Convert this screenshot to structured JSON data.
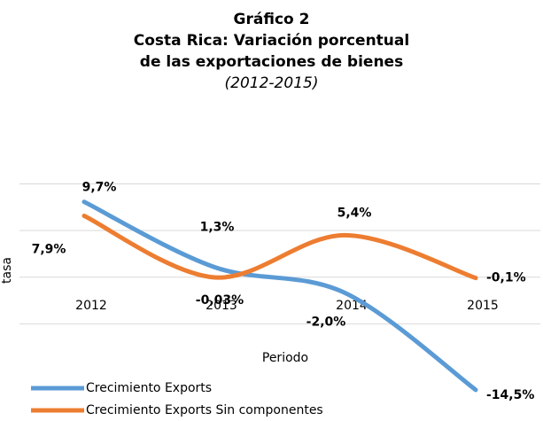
{
  "chart_data": {
    "type": "line",
    "title": "Gráfico 2",
    "subtitle": "Costa Rica: Variación porcentual de las exportaciones de bienes",
    "period": "(2012-2015)",
    "x_label": "Periodo",
    "y_label": "tasa",
    "categories": [
      "2012",
      "2013",
      "2014",
      "2015"
    ],
    "series": [
      {
        "name": "Crecimiento Exports",
        "color": "#5b9bd5",
        "values": [
          9.7,
          1.3,
          -2.0,
          -14.5
        ],
        "value_labels": [
          "9,7%",
          "1,3%",
          "-2,0%",
          "-14,5%"
        ]
      },
      {
        "name": "Crecimiento Exports Sin componentes",
        "color": "#ed7d31",
        "values": [
          7.9,
          -0.03,
          5.4,
          -0.1
        ],
        "value_labels": [
          "7,9%",
          "-0,03%",
          "5,4%",
          "-0,1%"
        ]
      }
    ],
    "ylim": [
      -16,
      14
    ],
    "yticks": [
      -6,
      0,
      6,
      12
    ],
    "grid": true,
    "smooth": true,
    "legend": "bottom-left"
  }
}
